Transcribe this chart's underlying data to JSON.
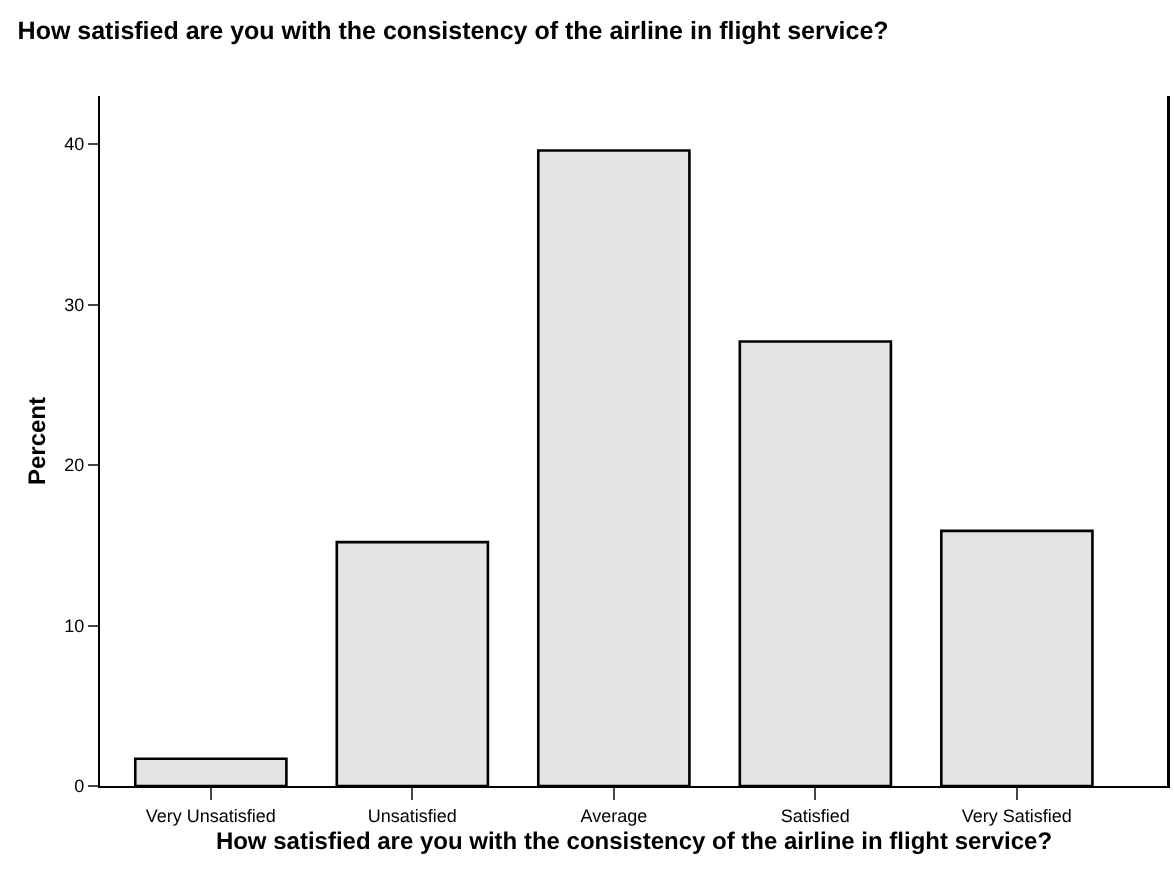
{
  "chart_data": {
    "type": "bar",
    "title": "How satisfied are you with the consistency of the airline in flight service?",
    "xlabel": "How satisfied are you with the consistency of the airline in flight service?",
    "ylabel": "Percent",
    "categories": [
      "Very Unsatisfied",
      "Unsatisfied",
      "Average",
      "Satisfied",
      "Very Satisfied"
    ],
    "values": [
      1.7,
      15.2,
      39.6,
      27.7,
      15.9
    ],
    "color": "#e3e3e3",
    "ylim": [
      0,
      43
    ],
    "yticks": [
      0,
      10,
      20,
      30,
      40
    ],
    "grid": false,
    "legend": false
  }
}
